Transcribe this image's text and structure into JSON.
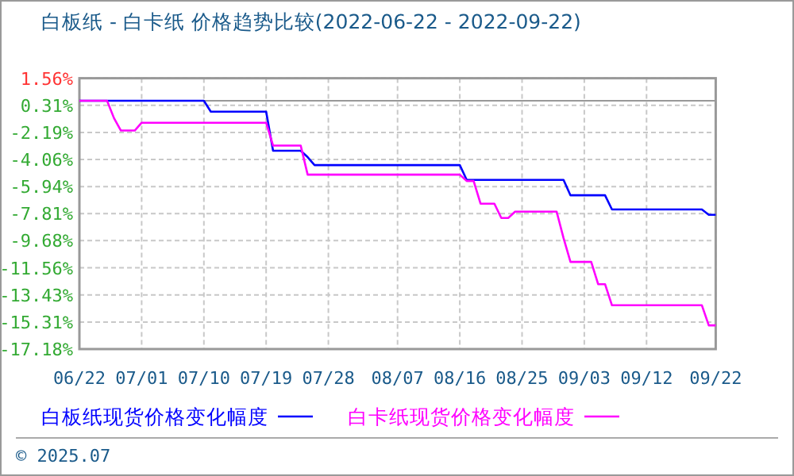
{
  "chart_data": {
    "type": "line",
    "title": "白板纸 - 白卡纸 价格趋势比较(2022-06-22 - 2022-09-22)",
    "xlim": [
      "2022-06-22",
      "2022-09-22"
    ],
    "xticks": [
      {
        "value": "2022-06-22",
        "label": "06/22"
      },
      {
        "value": "2022-07-01",
        "label": "07/01"
      },
      {
        "value": "2022-07-10",
        "label": "07/10"
      },
      {
        "value": "2022-07-19",
        "label": "07/19"
      },
      {
        "value": "2022-07-28",
        "label": "07/28"
      },
      {
        "value": "2022-08-07",
        "label": "08/07"
      },
      {
        "value": "2022-08-16",
        "label": "08/16"
      },
      {
        "value": "2022-08-25",
        "label": "08/25"
      },
      {
        "value": "2022-09-03",
        "label": "09/03"
      },
      {
        "value": "2022-09-12",
        "label": "09/12"
      },
      {
        "value": "2022-09-22",
        "label": "09/22"
      }
    ],
    "ylim": [
      -17.18,
      1.56
    ],
    "yticks": [
      {
        "value": 1.56,
        "label": "1.56%"
      },
      {
        "value": -0.31,
        "label": "0.31%"
      },
      {
        "value": -2.19,
        "label": "-2.19%"
      },
      {
        "value": -4.06,
        "label": "-4.06%"
      },
      {
        "value": -5.94,
        "label": "-5.94%"
      },
      {
        "value": -7.81,
        "label": "-7.81%"
      },
      {
        "value": -9.68,
        "label": "-9.68%"
      },
      {
        "value": -11.56,
        "label": "-11.56%"
      },
      {
        "value": -13.43,
        "label": "-13.43%"
      },
      {
        "value": -15.31,
        "label": "-15.31%"
      },
      {
        "value": -17.18,
        "label": "-17.18%"
      }
    ],
    "grid": true,
    "legend": "bottom",
    "ref_lines": [
      {
        "axis": "y",
        "value": 0,
        "color": "#999999"
      }
    ],
    "series": [
      {
        "name": "白板纸现货价格变化幅度",
        "color": "#0000ff",
        "x": [
          "2022-06-22",
          "2022-07-10",
          "2022-07-11",
          "2022-07-19",
          "2022-07-20",
          "2022-07-24",
          "2022-07-25",
          "2022-07-26",
          "2022-08-16",
          "2022-08-17",
          "2022-08-31",
          "2022-09-01",
          "2022-09-06",
          "2022-09-07",
          "2022-09-20",
          "2022-09-21",
          "2022-09-22"
        ],
        "values": [
          0,
          0,
          -0.75,
          -0.75,
          -3.46,
          -3.46,
          -3.9,
          -4.45,
          -4.45,
          -5.47,
          -5.47,
          -6.54,
          -6.54,
          -7.52,
          -7.52,
          -7.89,
          -7.89
        ]
      },
      {
        "name": "白卡纸现货价格变化幅度",
        "color": "#ff00ff",
        "x": [
          "2022-06-22",
          "2022-06-26",
          "2022-06-27",
          "2022-06-28",
          "2022-06-30",
          "2022-07-01",
          "2022-07-19",
          "2022-07-20",
          "2022-07-24",
          "2022-07-25",
          "2022-08-16",
          "2022-08-17",
          "2022-08-18",
          "2022-08-19",
          "2022-08-21",
          "2022-08-22",
          "2022-08-23",
          "2022-08-24",
          "2022-08-30",
          "2022-08-31",
          "2022-09-01",
          "2022-09-04",
          "2022-09-05",
          "2022-09-06",
          "2022-09-07",
          "2022-09-20",
          "2022-09-21",
          "2022-09-22"
        ],
        "values": [
          0,
          0,
          -1.2,
          -2.06,
          -2.06,
          -1.52,
          -1.52,
          -3.1,
          -3.1,
          -5.11,
          -5.11,
          -5.55,
          -5.55,
          -7.12,
          -7.12,
          -8.11,
          -8.11,
          -7.67,
          -7.67,
          -9.5,
          -11.15,
          -11.15,
          -12.69,
          -12.69,
          -14.15,
          -14.15,
          -15.54,
          -15.54
        ]
      }
    ],
    "annotations": [
      "© 2025.07"
    ]
  }
}
